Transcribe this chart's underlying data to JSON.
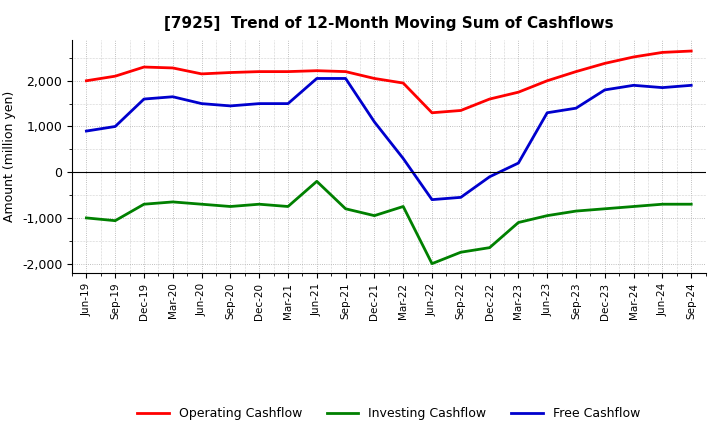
{
  "title": "[7925]  Trend of 12-Month Moving Sum of Cashflows",
  "ylabel": "Amount (million yen)",
  "x_labels": [
    "Jun-19",
    "Sep-19",
    "Dec-19",
    "Mar-20",
    "Jun-20",
    "Sep-20",
    "Dec-20",
    "Mar-21",
    "Jun-21",
    "Sep-21",
    "Dec-21",
    "Mar-22",
    "Jun-22",
    "Sep-22",
    "Dec-22",
    "Mar-23",
    "Jun-23",
    "Sep-23",
    "Dec-23",
    "Mar-24",
    "Jun-24",
    "Sep-24"
  ],
  "operating_cashflow": [
    2000,
    2100,
    2300,
    2280,
    2150,
    2180,
    2200,
    2200,
    2220,
    2200,
    2050,
    1950,
    1300,
    1350,
    1600,
    1750,
    2000,
    2200,
    2380,
    2520,
    2620,
    2650
  ],
  "investing_cashflow": [
    -1000,
    -1060,
    -700,
    -650,
    -700,
    -750,
    -700,
    -750,
    -200,
    -800,
    -950,
    -750,
    -2000,
    -1750,
    -1650,
    -1100,
    -950,
    -850,
    -800,
    -750,
    -700,
    -700
  ],
  "free_cashflow": [
    900,
    1000,
    1600,
    1650,
    1500,
    1450,
    1500,
    1500,
    2050,
    2050,
    1100,
    300,
    -600,
    -550,
    -100,
    200,
    1300,
    1400,
    1800,
    1900,
    1850,
    1900
  ],
  "operating_color": "#FF0000",
  "investing_color": "#008000",
  "free_color": "#0000CD",
  "ylim": [
    -2200,
    2900
  ],
  "yticks": [
    -2000,
    -1000,
    0,
    1000,
    2000
  ],
  "background_color": "#FFFFFF",
  "grid_color": "#AAAAAA",
  "linewidth": 2.0
}
